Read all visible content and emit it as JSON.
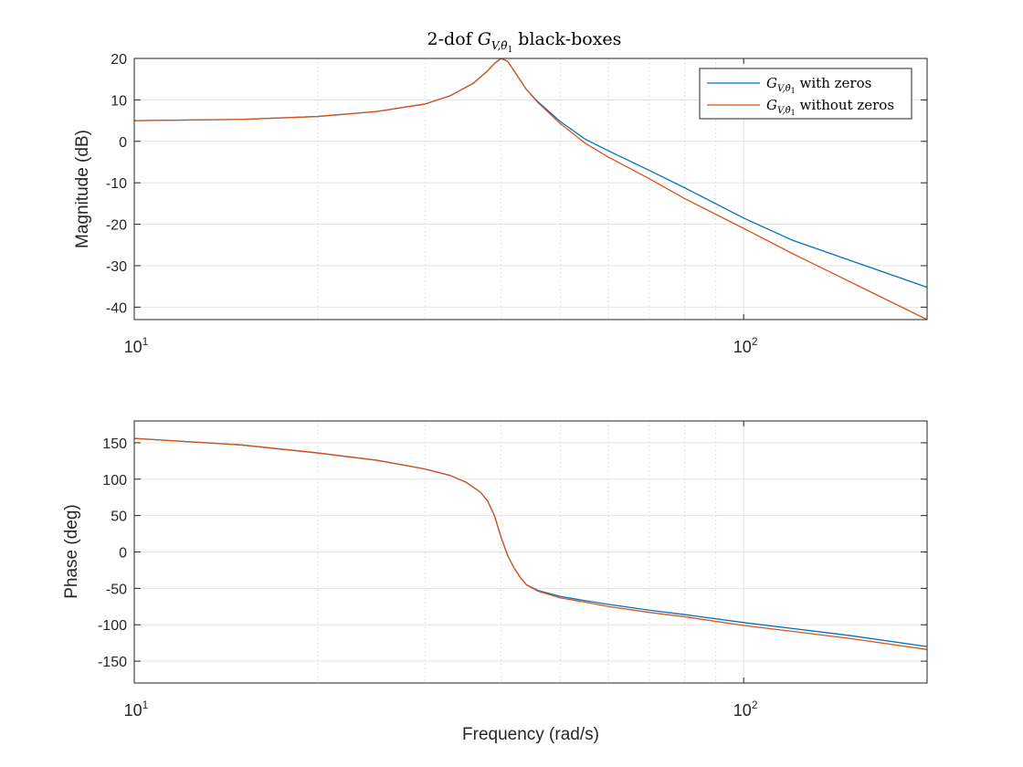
{
  "chart_data": [
    {
      "type": "line",
      "panel": "magnitude",
      "title": {
        "prefix": "2-dof ",
        "symbol": "G",
        "subscript": "V,θ̇",
        "subscript_index": "1",
        "suffix": " black-boxes"
      },
      "xlabel": "",
      "ylabel": "Magnitude (dB)",
      "xscale": "log",
      "xlim": [
        10,
        200
      ],
      "ylim": [
        -43,
        20
      ],
      "x_ticks": [
        {
          "base": "10",
          "exp": "1",
          "value": 10
        },
        {
          "base": "10",
          "exp": "2",
          "value": 100
        }
      ],
      "y_ticks": [
        "20",
        "10",
        "0",
        "-10",
        "-20",
        "-30",
        "-40"
      ],
      "grid": true,
      "legend": {
        "placement": "top-right",
        "entries": [
          {
            "symbol": "G",
            "subscript": "V,θ̇",
            "subscript_index": "1",
            "text": " with zeros"
          },
          {
            "symbol": "G",
            "subscript": "V,θ̇",
            "subscript_index": "1",
            "text": " without zeros"
          }
        ]
      },
      "series": [
        {
          "color": "#0072BD",
          "x": [
            10,
            15,
            20,
            25,
            30,
            33,
            36,
            38,
            39,
            40,
            41,
            42,
            44,
            46,
            50,
            55,
            60,
            70,
            80,
            100,
            120,
            150,
            200
          ],
          "y": [
            5,
            5.3,
            6,
            7.2,
            9,
            11,
            14,
            17,
            18.8,
            20,
            19.3,
            17,
            12.5,
            9.5,
            4.8,
            0.5,
            -2.3,
            -7,
            -11.2,
            -18.5,
            -23.8,
            -28.8,
            -35.2
          ]
        },
        {
          "color": "#D95319",
          "x": [
            10,
            15,
            20,
            25,
            30,
            33,
            36,
            38,
            39,
            40,
            41,
            42,
            44,
            46,
            50,
            55,
            60,
            70,
            80,
            100,
            120,
            150,
            200
          ],
          "y": [
            5,
            5.3,
            6,
            7.2,
            9,
            11,
            14,
            17,
            18.8,
            20,
            19.3,
            17,
            12.5,
            9.3,
            4.3,
            -0.5,
            -3.8,
            -9,
            -13.8,
            -21,
            -27,
            -34,
            -43
          ]
        }
      ]
    },
    {
      "type": "line",
      "panel": "phase",
      "xlabel": "Frequency (rad/s)",
      "ylabel": "Phase (deg)",
      "xscale": "log",
      "xlim": [
        10,
        200
      ],
      "ylim": [
        -180,
        180
      ],
      "x_ticks": [
        {
          "base": "10",
          "exp": "1",
          "value": 10
        },
        {
          "base": "10",
          "exp": "2",
          "value": 100
        }
      ],
      "y_ticks": [
        "150",
        "100",
        "50",
        "0",
        "-50",
        "-100",
        "-150"
      ],
      "grid": true,
      "series": [
        {
          "color": "#0072BD",
          "x": [
            10,
            15,
            20,
            25,
            30,
            33,
            35,
            37,
            38,
            39,
            40,
            41,
            42,
            43,
            44,
            46,
            50,
            55,
            60,
            70,
            80,
            100,
            120,
            150,
            200
          ],
          "y": [
            156,
            147,
            136,
            126,
            114,
            105,
            96,
            82,
            70,
            50,
            20,
            -5,
            -22,
            -35,
            -45,
            -53,
            -61,
            -67,
            -72,
            -80,
            -86,
            -97,
            -105,
            -115,
            -130
          ]
        },
        {
          "color": "#D95319",
          "x": [
            10,
            15,
            20,
            25,
            30,
            33,
            35,
            37,
            38,
            39,
            40,
            41,
            42,
            43,
            44,
            46,
            50,
            55,
            60,
            70,
            80,
            100,
            120,
            150,
            200
          ],
          "y": [
            156,
            147,
            136,
            126,
            114,
            105,
            96,
            82,
            70,
            50,
            20,
            -5,
            -22,
            -35,
            -45,
            -54,
            -63,
            -69,
            -75,
            -83,
            -89,
            -101,
            -109,
            -119,
            -134
          ]
        }
      ]
    }
  ]
}
